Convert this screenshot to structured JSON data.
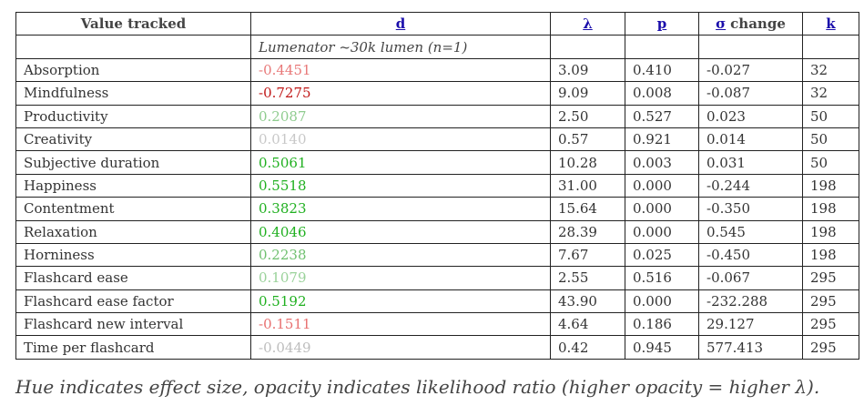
{
  "header": {
    "value_tracked": "Value tracked",
    "d": "d",
    "lambda": "λ",
    "p": "p",
    "sigma": "σ",
    "change": "change",
    "k": "k"
  },
  "subheader": "Lumenator ~30k lumen (n=1)",
  "table": {
    "rows": [
      {
        "label": "Absorption",
        "d": "-0.4451",
        "d_color": "#e87878",
        "lambda": "3.09",
        "p": "0.410",
        "sigma_change": "-0.027",
        "k": "32"
      },
      {
        "label": "Mindfulness",
        "d": "-0.7275",
        "d_color": "#c01818",
        "lambda": "9.09",
        "p": "0.008",
        "sigma_change": "-0.087",
        "k": "32"
      },
      {
        "label": "Productivity",
        "d": "0.2087",
        "d_color": "#8fcc8f",
        "lambda": "2.50",
        "p": "0.527",
        "sigma_change": "0.023",
        "k": "50"
      },
      {
        "label": "Creativity",
        "d": "0.0140",
        "d_color": "#c8c8c8",
        "lambda": "0.57",
        "p": "0.921",
        "sigma_change": "0.014",
        "k": "50"
      },
      {
        "label": "Subjective duration",
        "d": "0.5061",
        "d_color": "#20b020",
        "lambda": "10.28",
        "p": "0.003",
        "sigma_change": "0.031",
        "k": "50"
      },
      {
        "label": "Happiness",
        "d": "0.5518",
        "d_color": "#20b020",
        "lambda": "31.00",
        "p": "0.000",
        "sigma_change": "-0.244",
        "k": "198"
      },
      {
        "label": "Contentment",
        "d": "0.3823",
        "d_color": "#20b020",
        "lambda": "15.64",
        "p": "0.000",
        "sigma_change": "-0.350",
        "k": "198"
      },
      {
        "label": "Relaxation",
        "d": "0.4046",
        "d_color": "#20b020",
        "lambda": "28.39",
        "p": "0.000",
        "sigma_change": "0.545",
        "k": "198"
      },
      {
        "label": "Horniness",
        "d": "0.2238",
        "d_color": "#70c070",
        "lambda": "7.67",
        "p": "0.025",
        "sigma_change": "-0.450",
        "k": "198"
      },
      {
        "label": "Flashcard ease",
        "d": "0.1079",
        "d_color": "#9ad29a",
        "lambda": "2.55",
        "p": "0.516",
        "sigma_change": "-0.067",
        "k": "295"
      },
      {
        "label": "Flashcard ease factor",
        "d": "0.5192",
        "d_color": "#20b020",
        "lambda": "43.90",
        "p": "0.000",
        "sigma_change": "-232.288",
        "k": "295"
      },
      {
        "label": "Flashcard new interval",
        "d": "-0.1511",
        "d_color": "#e87070",
        "lambda": "4.64",
        "p": "0.186",
        "sigma_change": "29.127",
        "k": "295"
      },
      {
        "label": "Time per flashcard",
        "d": "-0.0449",
        "d_color": "#bdbdbd",
        "lambda": "0.42",
        "p": "0.945",
        "sigma_change": "577.413",
        "k": "295"
      }
    ]
  },
  "caption": "Hue indicates effect size, opacity indicates likelihood ratio (higher opacity = higher λ)."
}
